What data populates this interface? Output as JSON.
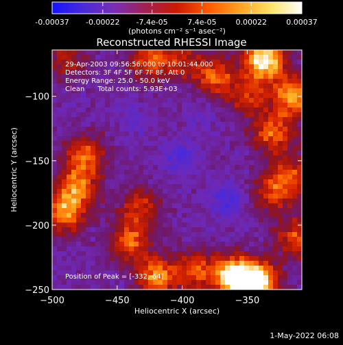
{
  "colorbar": {
    "tick_labels": [
      "-0.00037",
      "-0.00022",
      "-7.4e-05",
      "7.4e-05",
      "0.00022",
      "0.00037"
    ],
    "tick_values": [
      -0.00037,
      -0.00022,
      -7.4e-05,
      7.4e-05,
      0.00022,
      0.00037
    ],
    "range": [
      -0.00037,
      0.00037
    ],
    "unit_label": "(photons cm⁻² s⁻¹ asec⁻²)",
    "colors": [
      "#1414ff",
      "#4b2ad8",
      "#7a2eb4",
      "#a0224e",
      "#cc1a00",
      "#ff5a00",
      "#ffa020",
      "#ffe266",
      "#ffffff"
    ]
  },
  "title": "Reconstructed RHESSI Image",
  "info_lines": [
    "29-Apr-2003 09:56:56.000 to 10:01:44.000",
    "Detectors: 3F 4F 5F 6F 7F 8F, Att 0",
    "Energy Range: 25.0 - 50.0 keV",
    "Clean      Total counts: 5.93E+03"
  ],
  "peak_text": "Position of Peak = [-332,-64]",
  "footer_date": "1-May-2022 06:08",
  "chart_data": {
    "type": "heatmap",
    "xlabel": "Heliocentric X (arcsec)",
    "ylabel": "Heliocentric Y (arcsec)",
    "xlim": [
      -500,
      -308
    ],
    "ylim": [
      -250,
      -64
    ],
    "x_ticks": [
      -500,
      -450,
      -400,
      -350
    ],
    "x_tick_labels": [
      "−500",
      "−450",
      "−400",
      "−350"
    ],
    "y_ticks": [
      -100,
      -150,
      -200,
      -250
    ],
    "y_tick_labels": [
      "−100",
      "−150",
      "−200",
      "−250"
    ],
    "peak_position": [
      -332,
      -64
    ],
    "total_counts": 5930,
    "value_range": [
      -0.00037,
      0.00037
    ],
    "hot_regions": [
      {
        "x": -337,
        "y": -72,
        "strength": 1.0
      },
      {
        "x": -375,
        "y": -84,
        "strength": 0.55
      },
      {
        "x": -315,
        "y": -100,
        "strength": 0.75
      },
      {
        "x": -330,
        "y": -128,
        "strength": 0.6
      },
      {
        "x": -350,
        "y": -100,
        "strength": 0.45
      },
      {
        "x": -425,
        "y": -72,
        "strength": 0.55
      },
      {
        "x": -400,
        "y": -72,
        "strength": 0.4
      },
      {
        "x": -490,
        "y": -72,
        "strength": 0.35
      },
      {
        "x": -490,
        "y": -190,
        "strength": 0.7
      },
      {
        "x": -475,
        "y": -145,
        "strength": 0.55
      },
      {
        "x": -480,
        "y": -170,
        "strength": 0.6
      },
      {
        "x": -440,
        "y": -212,
        "strength": 0.6
      },
      {
        "x": -432,
        "y": -185,
        "strength": 0.45
      },
      {
        "x": -420,
        "y": -240,
        "strength": 0.7
      },
      {
        "x": -360,
        "y": -240,
        "strength": 1.05
      },
      {
        "x": -342,
        "y": -245,
        "strength": 1.0
      },
      {
        "x": -390,
        "y": -235,
        "strength": 0.55
      },
      {
        "x": -330,
        "y": -175,
        "strength": 0.5
      },
      {
        "x": -312,
        "y": -210,
        "strength": 0.55
      },
      {
        "x": -315,
        "y": -160,
        "strength": 0.45
      }
    ],
    "cold_regions": [
      {
        "x": -402,
        "y": -148,
        "strength": 0.6
      },
      {
        "x": -365,
        "y": -180,
        "strength": 0.65
      },
      {
        "x": -438,
        "y": -118,
        "strength": 0.3
      },
      {
        "x": -385,
        "y": -115,
        "strength": 0.25
      }
    ]
  }
}
